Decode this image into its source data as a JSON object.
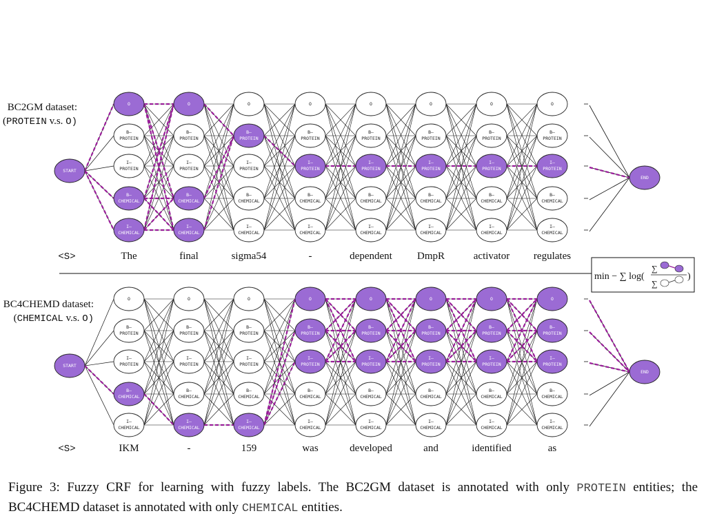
{
  "panels": [
    {
      "dataset_label": "BC2GM dataset:",
      "dataset_sub_mono": "PROTEIN",
      "dataset_sub_text": " v.s. ",
      "dataset_sub_mono2": "O)",
      "dataset_sub_prefix": "(",
      "start_label": "START",
      "end_label": "END",
      "tokens": [
        "<S>",
        "The",
        "final",
        "sigma54",
        "-",
        "dependent",
        "DmpR",
        "activator",
        "regulates"
      ],
      "states": [
        [
          "O"
        ],
        [
          "B–",
          "PROTEIN"
        ],
        [
          "I–",
          "PROTEIN"
        ],
        [
          "B–",
          "CHEMICAL"
        ],
        [
          "I–",
          "CHEMICAL"
        ]
      ],
      "highlighted": [
        [
          0,
          3,
          4
        ],
        [
          0,
          3,
          4
        ],
        [
          1
        ],
        [
          2
        ],
        [
          2
        ],
        [
          2
        ],
        [
          2
        ],
        [
          2
        ]
      ]
    },
    {
      "dataset_label": "BC4CHEMD dataset:",
      "dataset_sub_mono": "CHEMICAL",
      "dataset_sub_text": " v.s. ",
      "dataset_sub_mono2": "O)",
      "dataset_sub_prefix": "(",
      "start_label": "START",
      "end_label": "END",
      "tokens": [
        "<S>",
        "IKM",
        "-",
        "159",
        "was",
        "developed",
        "and",
        "identified",
        "as"
      ],
      "states": [
        [
          "O"
        ],
        [
          "B–",
          "PROTEIN"
        ],
        [
          "I–",
          "PROTEIN"
        ],
        [
          "B–",
          "CHEMICAL"
        ],
        [
          "I–",
          "CHEMICAL"
        ]
      ],
      "highlighted": [
        [
          3
        ],
        [
          4
        ],
        [
          4
        ],
        [
          0,
          1,
          2
        ],
        [
          0,
          1,
          2
        ],
        [
          0,
          1,
          2
        ],
        [
          0,
          1,
          2
        ],
        [
          0,
          1,
          2
        ]
      ]
    }
  ],
  "loss_box": {
    "text": "min − ∑ log(",
    "close": ")"
  },
  "caption": {
    "part1": "Figure 3: Fuzzy CRF for learning with fuzzy labels. The BC2GM dataset is annotated with only ",
    "mono1": "PROTEIN",
    "part2": " entities; the BC4CHEMD dataset is annotated with only ",
    "mono2": "CHEMICAL",
    "part3": " entities."
  },
  "colors": {
    "highlight_fill": "#9b6bd4",
    "highlight_edge": "#9a1d9a",
    "node_stroke": "#222222",
    "edge": "#111111"
  }
}
